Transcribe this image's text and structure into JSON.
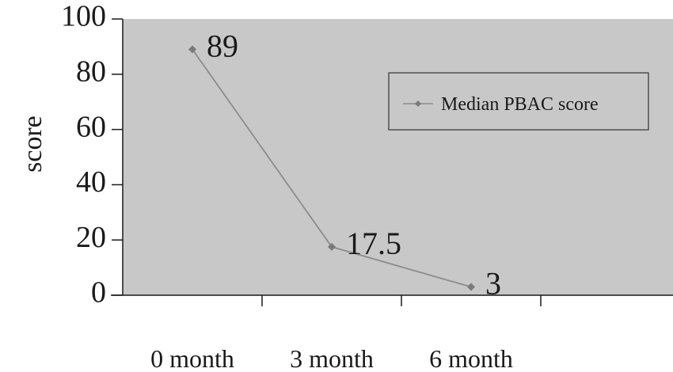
{
  "chart_data": {
    "type": "line",
    "categories": [
      "0 month",
      "3 month",
      "6 month"
    ],
    "series": [
      {
        "name": "Median PBAC score",
        "values": [
          89,
          17.5,
          3
        ],
        "data_labels": [
          "89",
          "17.5",
          "3"
        ]
      }
    ],
    "xlabel": "",
    "ylabel": "score",
    "ylim": [
      0,
      100
    ],
    "yticks": [
      0,
      20,
      40,
      60,
      80,
      100
    ],
    "grid": false,
    "legend": "top-right",
    "colors": {
      "plot_background": "#c8c8c8",
      "line": "#8c8c8c",
      "marker": "#7a7a7a",
      "axis": "#1a1a1a"
    }
  }
}
